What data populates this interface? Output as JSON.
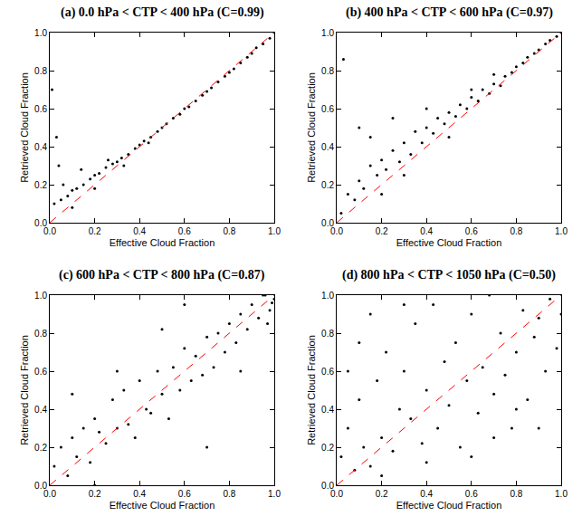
{
  "chart_data": [
    {
      "type": "scatter",
      "title": "(a) 0.0 hPa < CTP < 400 hPa (C=0.99)",
      "x_label": "Effective Cloud Fraction",
      "y_label": "Retrieved Cloud Fraction",
      "xlim": [
        0,
        1
      ],
      "ylim": [
        0,
        1
      ],
      "xticks": [
        {
          "value": 0,
          "label": "0.0"
        },
        0.2,
        0.4,
        0.6,
        0.8,
        {
          "value": 1,
          "label": "1.0"
        }
      ],
      "yticks": [
        {
          "value": 0,
          "label": "0.0"
        },
        0.2,
        0.4,
        0.6,
        0.8,
        {
          "value": 1,
          "label": "1.0"
        }
      ],
      "series": [
        {
          "type": "scatter",
          "color": "#000000",
          "marker": "circle",
          "x": [
            0.02,
            0.05,
            0.08,
            0.1,
            0.12,
            0.15,
            0.18,
            0.2,
            0.22,
            0.25,
            0.28,
            0.3,
            0.32,
            0.35,
            0.38,
            0.4,
            0.42,
            0.45,
            0.48,
            0.5,
            0.52,
            0.55,
            0.58,
            0.6,
            0.62,
            0.65,
            0.68,
            0.7,
            0.72,
            0.75,
            0.78,
            0.8,
            0.82,
            0.85,
            0.88,
            0.9,
            0.92,
            0.95,
            0.98,
            1.0,
            0.01,
            0.03,
            0.04,
            0.06,
            0.1,
            0.14,
            0.2,
            0.26,
            0.33,
            0.44
          ],
          "values": [
            0.1,
            0.12,
            0.14,
            0.17,
            0.18,
            0.2,
            0.23,
            0.25,
            0.26,
            0.29,
            0.31,
            0.32,
            0.34,
            0.36,
            0.39,
            0.41,
            0.43,
            0.45,
            0.48,
            0.5,
            0.52,
            0.55,
            0.57,
            0.6,
            0.61,
            0.64,
            0.67,
            0.69,
            0.71,
            0.74,
            0.77,
            0.79,
            0.81,
            0.84,
            0.87,
            0.89,
            0.92,
            0.94,
            0.97,
            1.0,
            0.7,
            0.45,
            0.3,
            0.2,
            0.08,
            0.28,
            0.18,
            0.33,
            0.3,
            0.42
          ]
        },
        {
          "type": "line",
          "color": "#ff0000",
          "line_style": "dashed",
          "x": [
            0,
            1
          ],
          "values": [
            0,
            1
          ]
        }
      ]
    },
    {
      "type": "scatter",
      "title": "(b) 400 hPa < CTP < 600 hPa (C=0.97)",
      "x_label": "Effective Cloud Fraction",
      "y_label": "Retrieved Cloud Fraction",
      "xlim": [
        0,
        1
      ],
      "ylim": [
        0,
        1
      ],
      "xticks": [
        {
          "value": 0,
          "label": "0.0"
        },
        0.2,
        0.4,
        0.6,
        0.8,
        {
          "value": 1,
          "label": "1.0"
        }
      ],
      "yticks": [
        {
          "value": 0,
          "label": "0.0"
        },
        0.2,
        0.4,
        0.6,
        0.8,
        {
          "value": 1,
          "label": "1.0"
        }
      ],
      "series": [
        {
          "type": "scatter",
          "color": "#000000",
          "marker": "circle",
          "x": [
            0.02,
            0.05,
            0.08,
            0.1,
            0.12,
            0.15,
            0.18,
            0.2,
            0.22,
            0.25,
            0.28,
            0.3,
            0.33,
            0.35,
            0.38,
            0.4,
            0.43,
            0.45,
            0.48,
            0.5,
            0.53,
            0.55,
            0.58,
            0.6,
            0.63,
            0.65,
            0.68,
            0.7,
            0.73,
            0.75,
            0.78,
            0.8,
            0.83,
            0.85,
            0.88,
            0.9,
            0.93,
            0.95,
            0.98,
            1.0,
            0.03,
            0.1,
            0.15,
            0.2,
            0.25,
            0.3,
            0.4,
            0.5,
            0.6,
            0.7
          ],
          "values": [
            0.05,
            0.15,
            0.12,
            0.22,
            0.18,
            0.3,
            0.25,
            0.33,
            0.28,
            0.38,
            0.32,
            0.42,
            0.36,
            0.48,
            0.42,
            0.5,
            0.47,
            0.55,
            0.52,
            0.58,
            0.56,
            0.62,
            0.6,
            0.66,
            0.64,
            0.7,
            0.68,
            0.73,
            0.72,
            0.77,
            0.79,
            0.82,
            0.84,
            0.87,
            0.89,
            0.91,
            0.94,
            0.96,
            0.98,
            1.0,
            0.86,
            0.5,
            0.45,
            0.15,
            0.55,
            0.25,
            0.6,
            0.45,
            0.7,
            0.78
          ]
        },
        {
          "type": "line",
          "color": "#ff0000",
          "line_style": "dashed",
          "x": [
            0,
            1
          ],
          "values": [
            0,
            1
          ]
        }
      ]
    },
    {
      "type": "scatter",
      "title": "(c) 600 hPa < CTP < 800 hPa (C=0.87)",
      "x_label": "Effective Cloud Fraction",
      "y_label": "Retrieved Cloud Fraction",
      "xlim": [
        0,
        1
      ],
      "ylim": [
        0,
        1
      ],
      "xticks": [
        {
          "value": 0,
          "label": "0.0"
        },
        0.2,
        0.4,
        0.6,
        0.8,
        {
          "value": 1,
          "label": "1.0"
        }
      ],
      "yticks": [
        {
          "value": 0,
          "label": "0.0"
        },
        0.2,
        0.4,
        0.6,
        0.8,
        {
          "value": 1,
          "label": "1.0"
        }
      ],
      "series": [
        {
          "type": "scatter",
          "color": "#000000",
          "marker": "circle",
          "x": [
            0.02,
            0.05,
            0.08,
            0.1,
            0.12,
            0.15,
            0.18,
            0.2,
            0.22,
            0.25,
            0.28,
            0.3,
            0.33,
            0.35,
            0.38,
            0.4,
            0.43,
            0.45,
            0.48,
            0.5,
            0.53,
            0.55,
            0.58,
            0.6,
            0.63,
            0.65,
            0.68,
            0.7,
            0.73,
            0.75,
            0.78,
            0.8,
            0.83,
            0.85,
            0.88,
            0.9,
            0.93,
            0.95,
            0.98,
            1.0,
            0.97,
            0.99,
            0.96,
            0.1,
            0.3,
            0.5,
            0.7,
            0.2,
            0.6,
            0.85
          ],
          "values": [
            0.1,
            0.2,
            0.05,
            0.25,
            0.15,
            0.3,
            0.12,
            0.35,
            0.28,
            0.22,
            0.45,
            0.3,
            0.5,
            0.32,
            0.25,
            0.55,
            0.4,
            0.38,
            0.6,
            0.48,
            0.35,
            0.62,
            0.5,
            0.72,
            0.55,
            0.68,
            0.58,
            0.78,
            0.62,
            0.8,
            0.7,
            0.85,
            0.75,
            0.9,
            0.82,
            0.95,
            0.88,
            1.0,
            0.92,
            0.98,
            0.85,
            0.96,
            1.0,
            0.48,
            0.6,
            0.82,
            0.2,
            0.0,
            0.95,
            0.6
          ]
        },
        {
          "type": "line",
          "color": "#ff0000",
          "line_style": "dashed",
          "x": [
            0,
            1
          ],
          "values": [
            0,
            1
          ]
        }
      ]
    },
    {
      "type": "scatter",
      "title": "(d) 800 hPa < CTP < 1050 hPa (C=0.50)",
      "x_label": "Effective Cloud Fraction",
      "y_label": "Retrieved Cloud Fraction",
      "xlim": [
        0,
        1
      ],
      "ylim": [
        0,
        1
      ],
      "xticks": [
        {
          "value": 0,
          "label": "0.0"
        },
        0.2,
        0.4,
        0.6,
        0.8,
        {
          "value": 1,
          "label": "1.0"
        }
      ],
      "yticks": [
        {
          "value": 0,
          "label": "0.0"
        },
        0.2,
        0.4,
        0.6,
        0.8,
        {
          "value": 1,
          "label": "1.0"
        }
      ],
      "series": [
        {
          "type": "scatter",
          "color": "#000000",
          "marker": "circle",
          "x": [
            0.02,
            0.05,
            0.08,
            0.1,
            0.12,
            0.15,
            0.18,
            0.2,
            0.22,
            0.25,
            0.28,
            0.3,
            0.33,
            0.35,
            0.38,
            0.4,
            0.43,
            0.45,
            0.48,
            0.5,
            0.53,
            0.55,
            0.58,
            0.6,
            0.63,
            0.65,
            0.68,
            0.7,
            0.73,
            0.75,
            0.78,
            0.8,
            0.83,
            0.85,
            0.88,
            0.9,
            0.93,
            0.95,
            0.98,
            1.0,
            0.1,
            0.15,
            0.2,
            0.3,
            0.4,
            0.6,
            0.7,
            0.8,
            0.9,
            0.05
          ],
          "values": [
            0.15,
            0.3,
            0.08,
            0.45,
            0.2,
            0.1,
            0.55,
            0.25,
            0.7,
            0.18,
            0.4,
            0.6,
            0.35,
            0.85,
            0.22,
            0.5,
            0.95,
            0.3,
            0.65,
            0.42,
            0.75,
            0.2,
            0.55,
            0.9,
            0.38,
            0.62,
            1.0,
            0.48,
            0.8,
            0.58,
            0.3,
            0.7,
            0.92,
            0.45,
            0.78,
            0.88,
            0.6,
            0.98,
            0.72,
            0.9,
            0.75,
            0.9,
            0.05,
            0.95,
            0.12,
            0.15,
            0.25,
            0.4,
            0.3,
            0.6
          ]
        },
        {
          "type": "line",
          "color": "#ff0000",
          "line_style": "dashed",
          "x": [
            0,
            1
          ],
          "values": [
            0,
            1
          ]
        }
      ]
    }
  ]
}
